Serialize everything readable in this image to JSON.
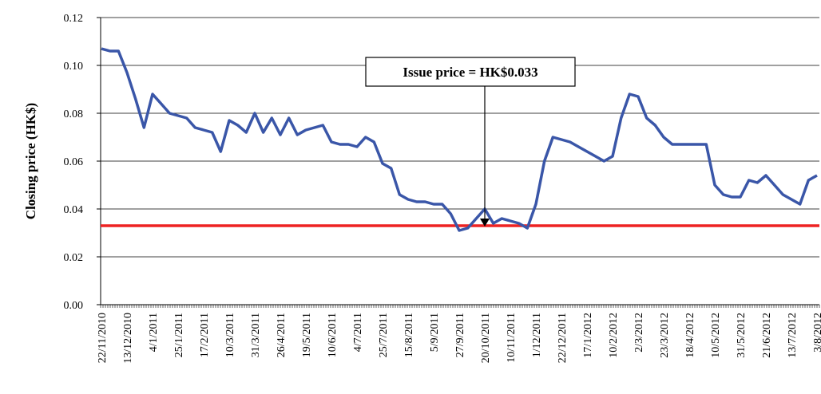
{
  "chart_data": {
    "type": "line",
    "y_label": "Closing price (HK$)",
    "categories": [
      "22/11/2010",
      null,
      null,
      "13/12/2010",
      null,
      null,
      "4/1/2011",
      null,
      null,
      "25/1/2011",
      null,
      null,
      "17/2/2011",
      null,
      null,
      "10/3/2011",
      null,
      null,
      "31/3/2011",
      null,
      null,
      "26/4/2011",
      null,
      null,
      "19/5/2011",
      null,
      null,
      "10/6/2011",
      null,
      null,
      "4/7/2011",
      null,
      null,
      "25/7/2011",
      null,
      null,
      "15/8/2011",
      null,
      null,
      "5/9/2011",
      null,
      null,
      "27/9/2011",
      null,
      null,
      "20/10/2011",
      null,
      null,
      "10/11/2011",
      null,
      null,
      "1/12/2011",
      null,
      null,
      "22/12/2011",
      null,
      null,
      "17/1/2012",
      null,
      null,
      "10/2/2012",
      null,
      null,
      "2/3/2012",
      null,
      null,
      "23/3/2012",
      null,
      null,
      "18/4/2012",
      null,
      null,
      "10/5/2012",
      null,
      null,
      "31/5/2012",
      null,
      null,
      "21/6/2012",
      null,
      null,
      "13/7/2012",
      null,
      null,
      "3/8/2012"
    ],
    "series": [
      {
        "color": "#3a56a8",
        "values": [
          0.107,
          0.106,
          0.106,
          0.097,
          0.086,
          0.074,
          0.088,
          0.084,
          0.08,
          0.079,
          0.078,
          0.074,
          0.073,
          0.072,
          0.064,
          0.077,
          0.075,
          0.072,
          0.08,
          0.072,
          0.078,
          0.071,
          0.078,
          0.071,
          0.073,
          0.074,
          0.075,
          0.068,
          0.067,
          0.067,
          0.066,
          0.07,
          0.068,
          0.059,
          0.057,
          0.046,
          0.044,
          0.043,
          0.043,
          0.042,
          0.042,
          0.038,
          0.031,
          0.032,
          0.036,
          0.04,
          0.034,
          0.036,
          0.035,
          0.034,
          0.032,
          0.042,
          0.06,
          0.07,
          0.069,
          0.068,
          0.066,
          0.064,
          0.062,
          0.06,
          0.062,
          0.078,
          0.088,
          0.087,
          0.078,
          0.075,
          0.07,
          0.067,
          0.067,
          0.067,
          0.067,
          0.067,
          0.05,
          0.046,
          0.045,
          0.045,
          0.052,
          0.051,
          0.054,
          0.05,
          0.046,
          0.044,
          0.042,
          0.052,
          0.054
        ]
      }
    ],
    "reference_line": {
      "value": 0.033,
      "color": "#ee2222"
    },
    "annotation": "Issue price = HK$0.033",
    "annotation_at": "20/10/2011",
    "ylim": [
      0,
      0.12
    ],
    "yticks": [
      {
        "value": 0,
        "label": "0.00"
      },
      0.02,
      0.04,
      0.06,
      0.08,
      {
        "value": 0.1,
        "label": "0.10"
      },
      0.12
    ],
    "grid": true
  }
}
